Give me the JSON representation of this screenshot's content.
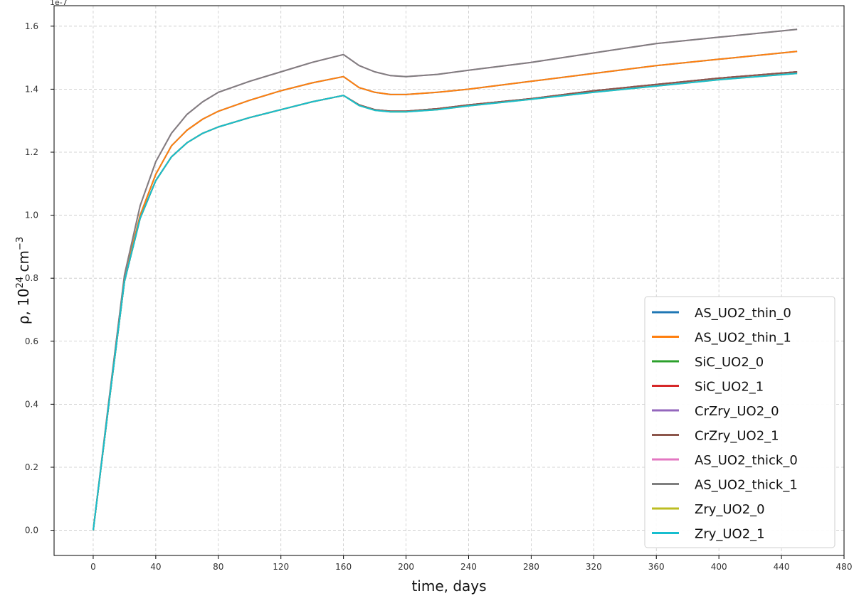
{
  "chart_data": {
    "type": "line",
    "title": "",
    "xlabel": "time, days",
    "ylabel_prefix": "ρ, 10",
    "ylabel_exp": "24",
    "ylabel_unit": " cm",
    "ylabel_unit_exp": "−3",
    "y_offset_text": "1e-7",
    "xlim": [
      -25,
      480
    ],
    "ylim": [
      -0.08,
      1.665
    ],
    "xticks": [
      0,
      40,
      80,
      120,
      160,
      200,
      240,
      280,
      320,
      360,
      400,
      440,
      480
    ],
    "xtick_labels": [
      "0",
      "40",
      "80",
      "120",
      "160",
      "200",
      "240",
      "280",
      "320",
      "360",
      "400",
      "440",
      "480"
    ],
    "yticks": [
      0.0,
      0.2,
      0.4,
      0.6,
      0.8,
      1.0,
      1.2,
      1.4,
      1.6
    ],
    "ytick_labels": [
      "0.0",
      "0.2",
      "0.4",
      "0.6",
      "0.8",
      "1.0",
      "1.2",
      "1.4",
      "1.6"
    ],
    "grid": true,
    "legend_position": "lower right",
    "x": [
      0,
      10,
      20,
      30,
      40,
      50,
      60,
      70,
      80,
      100,
      120,
      140,
      160,
      170,
      180,
      190,
      200,
      220,
      240,
      280,
      320,
      360,
      400,
      450
    ],
    "series": [
      {
        "name": "AS_UO2_thin_0",
        "color": "#1f77b4",
        "values": [
          0.0,
          0.4,
          0.8,
          1.0,
          1.13,
          1.22,
          1.27,
          1.305,
          1.33,
          1.365,
          1.395,
          1.42,
          1.44,
          1.405,
          1.39,
          1.383,
          1.383,
          1.39,
          1.4,
          1.425,
          1.45,
          1.475,
          1.495,
          1.52
        ]
      },
      {
        "name": "AS_UO2_thin_1",
        "color": "#ff7f0e",
        "values": [
          0.0,
          0.4,
          0.8,
          1.0,
          1.13,
          1.22,
          1.27,
          1.305,
          1.33,
          1.365,
          1.395,
          1.42,
          1.44,
          1.405,
          1.39,
          1.383,
          1.383,
          1.39,
          1.4,
          1.425,
          1.45,
          1.475,
          1.495,
          1.52
        ]
      },
      {
        "name": "SiC_UO2_0",
        "color": "#2ca02c",
        "values": [
          0.0,
          0.4,
          0.79,
          0.99,
          1.11,
          1.185,
          1.23,
          1.26,
          1.28,
          1.31,
          1.335,
          1.36,
          1.38,
          1.35,
          1.335,
          1.33,
          1.33,
          1.338,
          1.35,
          1.37,
          1.395,
          1.415,
          1.435,
          1.455
        ]
      },
      {
        "name": "SiC_UO2_1",
        "color": "#d62728",
        "values": [
          0.0,
          0.4,
          0.79,
          0.99,
          1.11,
          1.185,
          1.23,
          1.26,
          1.28,
          1.31,
          1.335,
          1.36,
          1.38,
          1.35,
          1.335,
          1.33,
          1.33,
          1.338,
          1.35,
          1.37,
          1.395,
          1.415,
          1.435,
          1.455
        ]
      },
      {
        "name": "CrZry_UO2_0",
        "color": "#9467bd",
        "values": [
          0.0,
          0.4,
          0.79,
          0.99,
          1.11,
          1.185,
          1.23,
          1.26,
          1.28,
          1.31,
          1.335,
          1.36,
          1.38,
          1.35,
          1.335,
          1.33,
          1.33,
          1.338,
          1.35,
          1.37,
          1.395,
          1.415,
          1.435,
          1.455
        ]
      },
      {
        "name": "CrZry_UO2_1",
        "color": "#8c564b",
        "values": [
          0.0,
          0.4,
          0.79,
          0.99,
          1.11,
          1.185,
          1.23,
          1.26,
          1.28,
          1.31,
          1.335,
          1.36,
          1.38,
          1.35,
          1.335,
          1.33,
          1.33,
          1.338,
          1.35,
          1.37,
          1.395,
          1.415,
          1.435,
          1.455
        ]
      },
      {
        "name": "AS_UO2_thick_0",
        "color": "#e377c2",
        "values": [
          0.0,
          0.41,
          0.81,
          1.03,
          1.17,
          1.26,
          1.32,
          1.36,
          1.39,
          1.425,
          1.455,
          1.485,
          1.51,
          1.475,
          1.455,
          1.443,
          1.44,
          1.447,
          1.46,
          1.485,
          1.515,
          1.545,
          1.565,
          1.59
        ]
      },
      {
        "name": "AS_UO2_thick_1",
        "color": "#7f7f7f",
        "values": [
          0.0,
          0.41,
          0.81,
          1.03,
          1.17,
          1.26,
          1.32,
          1.36,
          1.39,
          1.425,
          1.455,
          1.485,
          1.51,
          1.475,
          1.455,
          1.443,
          1.44,
          1.447,
          1.46,
          1.485,
          1.515,
          1.545,
          1.565,
          1.59
        ]
      },
      {
        "name": "Zry_UO2_0",
        "color": "#bcbd22",
        "values": [
          0.0,
          0.4,
          0.79,
          0.99,
          1.11,
          1.185,
          1.23,
          1.26,
          1.28,
          1.31,
          1.335,
          1.36,
          1.38,
          1.348,
          1.333,
          1.328,
          1.328,
          1.335,
          1.347,
          1.368,
          1.39,
          1.41,
          1.43,
          1.45
        ]
      },
      {
        "name": "Zry_UO2_1",
        "color": "#17becf",
        "values": [
          0.0,
          0.4,
          0.79,
          0.99,
          1.11,
          1.185,
          1.23,
          1.26,
          1.28,
          1.31,
          1.335,
          1.36,
          1.38,
          1.348,
          1.333,
          1.328,
          1.328,
          1.335,
          1.347,
          1.368,
          1.39,
          1.41,
          1.43,
          1.45
        ]
      }
    ]
  }
}
